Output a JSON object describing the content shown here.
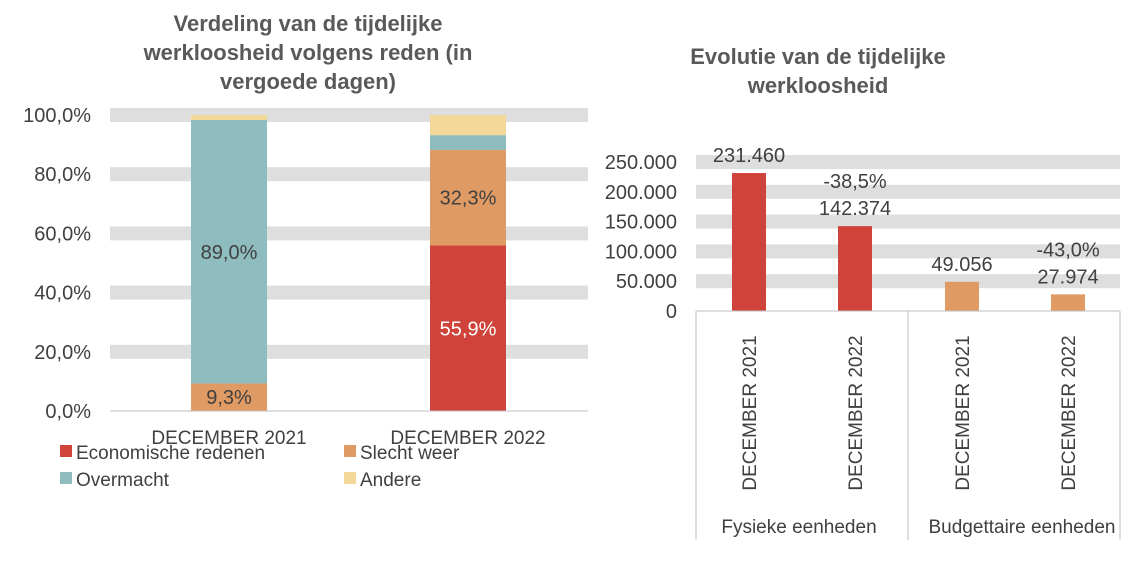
{
  "colors": {
    "economic": "#d0433a",
    "weather": "#e09a63",
    "force": "#8fbcbf",
    "other": "#f3d89a",
    "gridband": "#dedede",
    "text": "#404040",
    "title": "#595959"
  },
  "chart_data": [
    {
      "type": "bar",
      "stacked": true,
      "title_lines": [
        "Verdeling van de tijdelijke",
        "werkloosheid volgens reden (in",
        "vergoede dagen)"
      ],
      "categories": [
        "DECEMBER 2021",
        "DECEMBER 2022"
      ],
      "series": [
        {
          "name": "Economische redenen",
          "color_key": "economic",
          "values": [
            0.0,
            55.9
          ],
          "labels": [
            "",
            "55,9%"
          ]
        },
        {
          "name": "Slecht weer",
          "color_key": "weather",
          "values": [
            9.3,
            32.3
          ],
          "labels": [
            "9,3%",
            "32,3%"
          ]
        },
        {
          "name": "Overmacht",
          "color_key": "force",
          "values": [
            89.0,
            5.0
          ],
          "labels": [
            "89,0%",
            ""
          ]
        },
        {
          "name": "Andere",
          "color_key": "other",
          "values": [
            1.7,
            6.8
          ],
          "labels": [
            "",
            ""
          ]
        }
      ],
      "ylim": [
        0,
        100
      ],
      "yticks": [
        0,
        20,
        40,
        60,
        80,
        100
      ],
      "ytick_labels": [
        "0,0%",
        "20,0%",
        "40,0%",
        "60,0%",
        "80,0%",
        "100,0%"
      ],
      "legend_position": "bottom"
    },
    {
      "type": "bar",
      "title_lines": [
        "Evolutie van de tijdelijke",
        "werkloosheid"
      ],
      "categories": [
        "DECEMBER 2021",
        "DECEMBER 2022",
        "DECEMBER 2021",
        "DECEMBER 2022"
      ],
      "groups": [
        {
          "label": "Fysieke eenheden",
          "start": 0,
          "end": 1
        },
        {
          "label": "Budgettaire eenheden",
          "start": 2,
          "end": 3
        }
      ],
      "values": [
        231460,
        142374,
        49056,
        27974
      ],
      "value_labels": [
        "231.460",
        "142.374",
        "49.056",
        "27.974"
      ],
      "change_labels": [
        "",
        "-38,5%",
        "",
        "-43,0%"
      ],
      "bar_color_keys": [
        "economic",
        "economic",
        "weather",
        "weather"
      ],
      "ylim": [
        0,
        250000
      ],
      "yticks": [
        0,
        50000,
        100000,
        150000,
        200000,
        250000
      ],
      "ytick_labels": [
        "0",
        "50.000",
        "100.000",
        "150.000",
        "200.000",
        "250.000"
      ]
    }
  ]
}
